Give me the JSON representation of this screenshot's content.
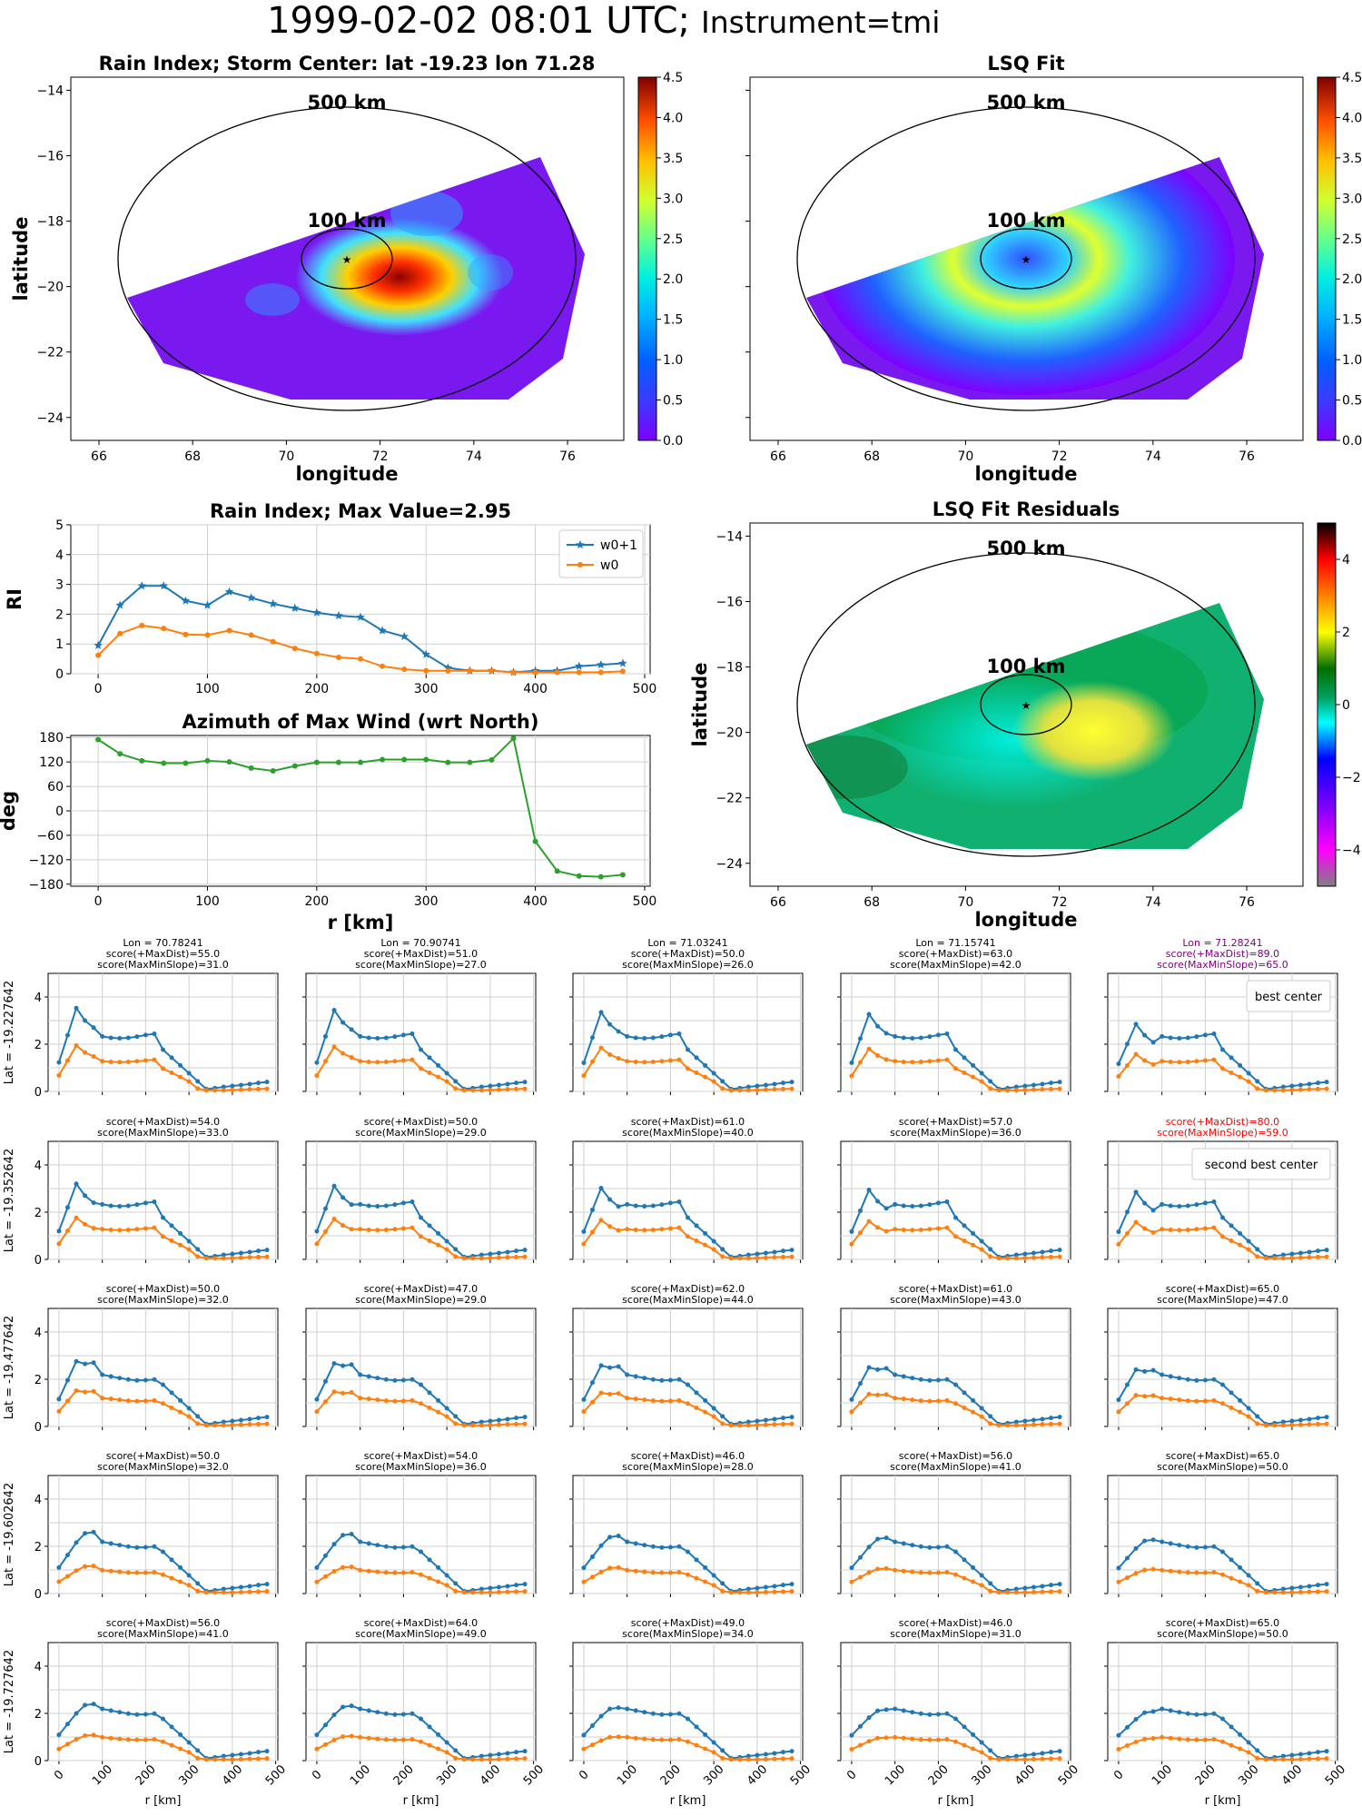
{
  "header": {
    "title": "1999-02-02 08:01 UTC;",
    "instrument": "Instrument=tmi"
  },
  "colors": {
    "w0p1": "#1f77b4",
    "w0": "#ff7f0e",
    "azimuth": "#2ca02c",
    "highlight_best": "#800080",
    "highlight_second": "#ff0000",
    "grid": "#d0d0d0"
  },
  "maps": [
    {
      "id": "rain-index-map",
      "title": "Rain Index; Storm Center: lat -19.23 lon 71.28",
      "xlabel": "longitude",
      "ylabel": "latitude",
      "xticks": [
        "66",
        "68",
        "70",
        "72",
        "74",
        "76"
      ],
      "yticks": [
        "−14",
        "−16",
        "−18",
        "−20",
        "−22",
        "−24"
      ],
      "ring_labels": [
        "500 km",
        "100 km"
      ],
      "colorbar": {
        "ticks": [
          "0.0",
          "0.5",
          "1.0",
          "1.5",
          "2.0",
          "2.5",
          "3.0",
          "3.5",
          "4.0",
          "4.5"
        ],
        "range": [
          0,
          4.5
        ]
      }
    },
    {
      "id": "lsq-fit-map",
      "title": "LSQ Fit",
      "xlabel": "longitude",
      "ylabel": "",
      "xticks": [
        "66",
        "68",
        "70",
        "72",
        "74",
        "76"
      ],
      "yticks": [],
      "ring_labels": [
        "500 km",
        "100 km"
      ],
      "colorbar": {
        "ticks": [
          "0.0",
          "0.5",
          "1.0",
          "1.5",
          "2.0",
          "2.5",
          "3.0",
          "3.5",
          "4.0",
          "4.5"
        ],
        "range": [
          0,
          4.5
        ]
      }
    },
    {
      "id": "lsq-residuals-map",
      "title": "LSQ Fit Residuals",
      "xlabel": "longitude",
      "ylabel": "latitude",
      "xticks": [
        "66",
        "68",
        "70",
        "72",
        "74",
        "76"
      ],
      "yticks": [
        "−14",
        "−16",
        "−18",
        "−20",
        "−22",
        "−24"
      ],
      "ring_labels": [
        "500 km",
        "100 km"
      ],
      "colorbar": {
        "ticks": [
          "4",
          "2",
          "0",
          "−2",
          "−4"
        ],
        "range": [
          -5,
          5
        ]
      }
    }
  ],
  "chart_data": [
    {
      "type": "line",
      "title": "Rain Index; Max Value=2.95",
      "ylabel": "RI",
      "xlim": [
        -25,
        505
      ],
      "ylim": [
        0,
        5
      ],
      "xticks": [
        "0",
        "100",
        "200",
        "300",
        "400",
        "500"
      ],
      "yticks": [
        "0",
        "1",
        "2",
        "3",
        "4",
        "5"
      ],
      "x": [
        0,
        20,
        40,
        60,
        80,
        100,
        120,
        140,
        160,
        180,
        200,
        220,
        240,
        260,
        280,
        300,
        320,
        340,
        360,
        380,
        400,
        420,
        440,
        460,
        480
      ],
      "legend": "top-right",
      "series": [
        {
          "name": "w0+1",
          "values": [
            0.95,
            2.3,
            2.95,
            2.95,
            2.45,
            2.3,
            2.75,
            2.55,
            2.35,
            2.2,
            2.05,
            1.95,
            1.9,
            1.45,
            1.25,
            0.65,
            0.2,
            0.1,
            0.1,
            0.05,
            0.1,
            0.1,
            0.25,
            0.3,
            0.35
          ]
        },
        {
          "name": "w0",
          "values": [
            0.62,
            1.35,
            1.62,
            1.52,
            1.32,
            1.3,
            1.45,
            1.3,
            1.08,
            0.85,
            0.68,
            0.55,
            0.5,
            0.25,
            0.15,
            0.1,
            0.1,
            0.1,
            0.1,
            0.05,
            0.05,
            0.05,
            0.05,
            0.05,
            0.08
          ]
        }
      ]
    },
    {
      "type": "line",
      "title": "Azimuth of Max Wind (wrt North)",
      "xlabel": "r [km]",
      "ylabel": "deg",
      "xlim": [
        -25,
        505
      ],
      "ylim": [
        -185,
        185
      ],
      "xticks": [
        "0",
        "100",
        "200",
        "300",
        "400",
        "500"
      ],
      "yticks": [
        "180",
        "120",
        "60",
        "0",
        "−60",
        "−120",
        "−180"
      ],
      "x": [
        0,
        20,
        40,
        60,
        80,
        100,
        120,
        140,
        160,
        180,
        200,
        220,
        240,
        260,
        280,
        300,
        320,
        340,
        360,
        380,
        400,
        420,
        440,
        460,
        480
      ],
      "series": [
        {
          "values": [
            175,
            140,
            123,
            117,
            117,
            123,
            120,
            105,
            98,
            110,
            119,
            119,
            119,
            126,
            126,
            126,
            119,
            119,
            125,
            178,
            -75,
            -148,
            -160,
            -162,
            -157
          ]
        }
      ]
    },
    {
      "type": "line",
      "grid": "5x5 small multiples",
      "xlabel": "r [km]",
      "ylim": [
        0,
        5
      ],
      "xticks": [
        "0",
        "100",
        "200",
        "300",
        "400",
        "500"
      ],
      "yticks": [
        "0",
        "2",
        "4"
      ],
      "x": [
        0,
        20,
        40,
        60,
        80,
        100,
        120,
        140,
        160,
        180,
        200,
        220,
        240,
        260,
        280,
        300,
        320,
        340,
        360,
        380,
        400,
        420,
        440,
        460,
        480
      ],
      "row_labels": [
        "Lat = -19.227642",
        "Lat = -19.352642",
        "Lat = -19.477642",
        "Lat = -19.602642",
        "Lat = -19.727642"
      ],
      "col_lons": [
        "Lon = 70.78241",
        "Lon = 70.90741",
        "Lon = 71.03241",
        "Lon = 71.15741",
        "Lon = 71.28241"
      ],
      "panels": [
        [
          {
            "lon": "Lon = 70.78241",
            "s1": "score(+MaxDist)=55.0",
            "s2": "score(MaxMinSlope)=31.0"
          },
          {
            "lon": "Lon = 70.90741",
            "s1": "score(+MaxDist)=51.0",
            "s2": "score(MaxMinSlope)=27.0"
          },
          {
            "lon": "Lon = 71.03241",
            "s1": "score(+MaxDist)=50.0",
            "s2": "score(MaxMinSlope)=26.0"
          },
          {
            "lon": "Lon = 71.15741",
            "s1": "score(+MaxDist)=63.0",
            "s2": "score(MaxMinSlope)=42.0"
          },
          {
            "lon": "Lon = 71.28241",
            "s1": "score(+MaxDist)=89.0",
            "s2": "score(MaxMinSlope)=65.0",
            "highlight": "best",
            "legend": "best center"
          }
        ],
        [
          {
            "s1": "score(+MaxDist)=54.0",
            "s2": "score(MaxMinSlope)=33.0"
          },
          {
            "s1": "score(+MaxDist)=50.0",
            "s2": "score(MaxMinSlope)=29.0"
          },
          {
            "s1": "score(+MaxDist)=61.0",
            "s2": "score(MaxMinSlope)=40.0"
          },
          {
            "s1": "score(+MaxDist)=57.0",
            "s2": "score(MaxMinSlope)=36.0"
          },
          {
            "s1": "score(+MaxDist)=80.0",
            "s2": "score(MaxMinSlope)=59.0",
            "highlight": "second",
            "legend": "second best center"
          }
        ],
        [
          {
            "s1": "score(+MaxDist)=50.0",
            "s2": "score(MaxMinSlope)=32.0"
          },
          {
            "s1": "score(+MaxDist)=47.0",
            "s2": "score(MaxMinSlope)=29.0"
          },
          {
            "s1": "score(+MaxDist)=62.0",
            "s2": "score(MaxMinSlope)=44.0"
          },
          {
            "s1": "score(+MaxDist)=61.0",
            "s2": "score(MaxMinSlope)=43.0"
          },
          {
            "s1": "score(+MaxDist)=65.0",
            "s2": "score(MaxMinSlope)=47.0"
          }
        ],
        [
          {
            "s1": "score(+MaxDist)=50.0",
            "s2": "score(MaxMinSlope)=32.0"
          },
          {
            "s1": "score(+MaxDist)=54.0",
            "s2": "score(MaxMinSlope)=36.0"
          },
          {
            "s1": "score(+MaxDist)=46.0",
            "s2": "score(MaxMinSlope)=28.0"
          },
          {
            "s1": "score(+MaxDist)=56.0",
            "s2": "score(MaxMinSlope)=41.0"
          },
          {
            "s1": "score(+MaxDist)=65.0",
            "s2": "score(MaxMinSlope)=50.0"
          }
        ],
        [
          {
            "s1": "score(+MaxDist)=56.0",
            "s2": "score(MaxMinSlope)=41.0"
          },
          {
            "s1": "score(+MaxDist)=64.0",
            "s2": "score(MaxMinSlope)=49.0"
          },
          {
            "s1": "score(+MaxDist)=49.0",
            "s2": "score(MaxMinSlope)=34.0"
          },
          {
            "s1": "score(+MaxDist)=46.0",
            "s2": "score(MaxMinSlope)=31.0"
          },
          {
            "s1": "score(+MaxDist)=65.0",
            "s2": "score(MaxMinSlope)=50.0"
          }
        ]
      ]
    }
  ]
}
